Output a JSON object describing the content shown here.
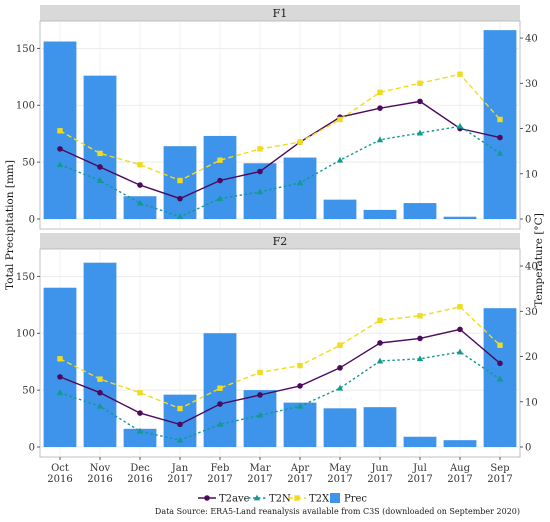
{
  "chart_data": {
    "type": "bar",
    "y_left_label": "Total Precipitation [mm]",
    "y_right_label": "Temperature [°C]",
    "y_left_lim": [
      0,
      167
    ],
    "y_right_lim": [
      0,
      42
    ],
    "y_left_ticks": [
      0,
      50,
      100,
      150
    ],
    "y_right_ticks": [
      0,
      10,
      20,
      30,
      40
    ],
    "categories": [
      "Oct\n2016",
      "Nov\n2016",
      "Dec\n2016",
      "Jan\n2017",
      "Feb\n2017",
      "Mar\n2017",
      "Apr\n2017",
      "May\n2017",
      "Jun\n2017",
      "Jul\n2017",
      "Aug\n2017",
      "Sep\n2017"
    ],
    "legend": [
      {
        "key": "t2ave",
        "name": "T2ave",
        "color": "#4b0a5e",
        "marker": "circle",
        "dash": "solid"
      },
      {
        "key": "t2n",
        "name": "T2N",
        "color": "#129a8f",
        "marker": "triangle",
        "dash": "dotted"
      },
      {
        "key": "t2x",
        "name": "T2X",
        "color": "#f0dc1e",
        "marker": "square",
        "dash": "dashed"
      },
      {
        "key": "prec",
        "name": "Prec",
        "color": "#3e93ea",
        "marker": "bar"
      }
    ],
    "source_note": "Data Source: ERA5-Land reanalysis available from C3S (downloaded on September 2020)",
    "grid": true,
    "legend_position": "bottom",
    "panels": [
      {
        "title": "F1",
        "prec": [
          156,
          126,
          20,
          64,
          73,
          49,
          54,
          17,
          8,
          14,
          2,
          166
        ],
        "t2ave": [
          15.5,
          11.5,
          7.5,
          4.5,
          8.5,
          10.5,
          17,
          22.5,
          24.5,
          26,
          20,
          18
        ],
        "t2n": [
          12,
          8.5,
          3.5,
          0.5,
          4.5,
          6,
          8,
          13,
          17.5,
          19,
          20.5,
          14.5
        ],
        "t2x": [
          19.5,
          14.5,
          12,
          8.5,
          13,
          15.5,
          17,
          22,
          28,
          30,
          32,
          22
        ]
      },
      {
        "title": "F2",
        "prec": [
          140,
          162,
          16,
          46,
          100,
          50,
          39,
          34,
          35,
          9,
          6,
          122
        ],
        "t2ave": [
          15.5,
          12,
          7.5,
          5,
          9.5,
          11.5,
          13.5,
          17.5,
          23,
          24,
          26,
          18.5
        ],
        "t2n": [
          12,
          9,
          3.5,
          1.5,
          5,
          7,
          9,
          13,
          19,
          19.5,
          21,
          15
        ],
        "t2x": [
          19.5,
          15,
          12,
          8.5,
          13,
          16.5,
          18,
          22.5,
          28,
          29,
          31,
          22.5
        ]
      }
    ]
  }
}
